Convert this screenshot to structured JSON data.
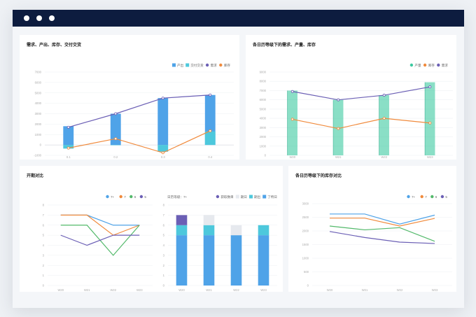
{
  "window": {
    "controls": [
      "close-dot",
      "minimize-dot",
      "maximize-dot"
    ]
  },
  "panels": {
    "p1": {
      "title": "需求、产出、库存、交付交货",
      "legend": [
        {
          "name": "产出",
          "color": "#4fa3e8",
          "shape": "square"
        },
        {
          "name": "交付交货",
          "color": "#4dc8dc",
          "shape": "square"
        },
        {
          "name": "需求",
          "color": "#6b5fb5",
          "shape": "dot"
        },
        {
          "name": "库存",
          "color": "#f08a3c",
          "shape": "dot"
        }
      ]
    },
    "p2": {
      "title": "各日历等级下的需求、产量、库存",
      "legend": [
        {
          "name": "产量",
          "color": "#3cc9a0",
          "shape": "dot"
        },
        {
          "name": "库存",
          "color": "#f08a3c",
          "shape": "dot"
        },
        {
          "name": "需求",
          "color": "#6b5fb5",
          "shape": "dot"
        }
      ]
    },
    "p3": {
      "title": "开期对比",
      "legend": [
        {
          "name": "7+",
          "color": "#4fa3e8",
          "shape": "dot"
        },
        {
          "name": "7",
          "color": "#f08a3c",
          "shape": "dot"
        },
        {
          "name": "6",
          "color": "#52b96a",
          "shape": "dot"
        },
        {
          "name": "5",
          "color": "#6b5fb5",
          "shape": "dot"
        }
      ],
      "legend2_label": "日历等级：7+",
      "legend2": [
        {
          "name": "获取数目",
          "color": "#6b5fb5",
          "shape": "dot"
        },
        {
          "name": "期日",
          "color": "#e6e9ee",
          "shape": "square"
        },
        {
          "name": "期出",
          "color": "#4dc8dc",
          "shape": "square"
        },
        {
          "name": "了特日",
          "color": "#4fa3e8",
          "shape": "square"
        }
      ]
    },
    "p4": {
      "title": "各日历等级下的库存对比",
      "legend": [
        {
          "name": "7+",
          "color": "#4fa3e8",
          "shape": "dot"
        },
        {
          "name": "7",
          "color": "#f08a3c",
          "shape": "dot"
        },
        {
          "name": "6",
          "color": "#52b96a",
          "shape": "dot"
        },
        {
          "name": "5",
          "color": "#6b5fb5",
          "shape": "dot"
        }
      ]
    }
  },
  "chart_data": [
    {
      "id": "p1",
      "type": "bar",
      "title": "需求、产出、库存、交付交货",
      "categories": [
        "0.1",
        "0.2",
        "0.3",
        "0.4"
      ],
      "ylim": [
        -1000,
        7000
      ],
      "yticks": [
        7000,
        6000,
        5000,
        4000,
        3000,
        2000,
        1000,
        0,
        -1000
      ],
      "series": [
        {
          "name": "产出",
          "kind": "bar",
          "color": "#4fa3e8",
          "values": [
            1800,
            3000,
            4500,
            4800
          ]
        },
        {
          "name": "交付交货",
          "kind": "bar",
          "color": "#4dc8dc",
          "values": [
            -350,
            0,
            -650,
            1300
          ]
        },
        {
          "name": "需求",
          "kind": "line",
          "color": "#6b5fb5",
          "values": [
            1700,
            3000,
            4500,
            4800
          ]
        },
        {
          "name": "库存",
          "kind": "line",
          "color": "#f08a3c",
          "values": [
            -300,
            600,
            -750,
            1350
          ]
        }
      ]
    },
    {
      "id": "p2",
      "type": "bar",
      "title": "各日历等级下的需求、产量、库存",
      "categories": [
        "W20",
        "W21",
        "W22",
        "W23"
      ],
      "ylim": [
        0,
        9000
      ],
      "yticks": [
        9000,
        8000,
        7000,
        6000,
        5000,
        4000,
        3000,
        2000,
        1000,
        0
      ],
      "series": [
        {
          "name": "产量",
          "kind": "bar",
          "color": "#3cc9a0",
          "values": [
            7000,
            6000,
            6500,
            7900
          ]
        },
        {
          "name": "库存",
          "kind": "line",
          "color": "#f08a3c",
          "values": [
            3900,
            2900,
            4000,
            3500
          ]
        },
        {
          "name": "需求",
          "kind": "line",
          "color": "#6b5fb5",
          "values": [
            6900,
            6000,
            6500,
            7400
          ]
        }
      ]
    },
    {
      "id": "p3a",
      "type": "line",
      "title": "开期对比",
      "categories": [
        "W20",
        "W21",
        "W22",
        "W23"
      ],
      "ylim": [
        0,
        8
      ],
      "yticks": [
        8,
        7,
        6,
        5,
        4,
        3,
        2,
        1,
        0
      ],
      "series": [
        {
          "name": "7+",
          "color": "#4fa3e8",
          "values": [
            7,
            7,
            6,
            6
          ]
        },
        {
          "name": "7",
          "color": "#f08a3c",
          "values": [
            7,
            7,
            5,
            6
          ]
        },
        {
          "name": "6",
          "color": "#52b96a",
          "values": [
            6,
            6,
            3,
            6
          ]
        },
        {
          "name": "5",
          "color": "#6b5fb5",
          "values": [
            5,
            4,
            5,
            5
          ]
        }
      ]
    },
    {
      "id": "p3b",
      "type": "bar",
      "categories": [
        "W20",
        "W21",
        "W22",
        "W23"
      ],
      "ylim": [
        0,
        8
      ],
      "yticks": [
        8,
        7,
        6,
        5,
        4,
        3,
        2,
        1,
        0
      ],
      "stacked": true,
      "series": [
        {
          "name": "了特日",
          "color": "#4fa3e8",
          "values": [
            5,
            5,
            5,
            5
          ]
        },
        {
          "name": "期出",
          "color": "#4dc8dc",
          "values": [
            1,
            1,
            0,
            1
          ]
        },
        {
          "name": "期日",
          "color": "#e6e9ee",
          "values": [
            0,
            1,
            1,
            0
          ]
        },
        {
          "name": "获取数目",
          "color": "#6b5fb5",
          "values": [
            1,
            0,
            0,
            0
          ]
        }
      ]
    },
    {
      "id": "p4",
      "type": "line",
      "title": "各日历等级下的库存对比",
      "categories": [
        "W20",
        "W21",
        "W22",
        "W23"
      ],
      "ylim": [
        0,
        3000
      ],
      "yticks": [
        3000,
        2500,
        2000,
        1500,
        1000,
        500,
        0
      ],
      "series": [
        {
          "name": "7+",
          "color": "#4fa3e8",
          "values": [
            2620,
            2620,
            2250,
            2580
          ]
        },
        {
          "name": "7",
          "color": "#f08a3c",
          "values": [
            2470,
            2470,
            2180,
            2460
          ]
        },
        {
          "name": "6",
          "color": "#52b96a",
          "values": [
            2180,
            2040,
            2120,
            1620
          ]
        },
        {
          "name": "5",
          "color": "#6b5fb5",
          "values": [
            1980,
            1760,
            1590,
            1540
          ]
        }
      ]
    }
  ]
}
